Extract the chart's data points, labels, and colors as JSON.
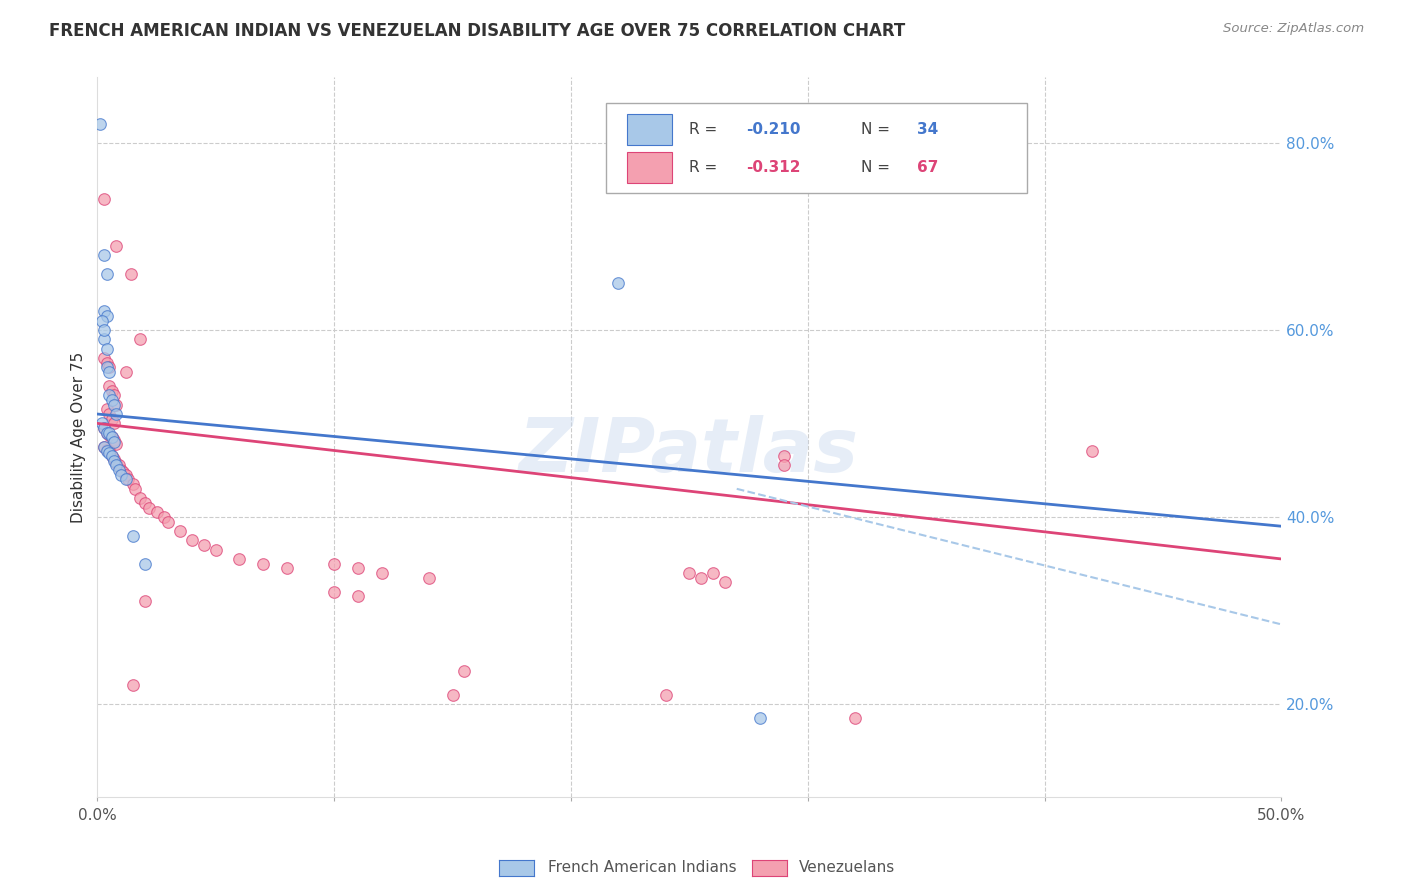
{
  "title": "FRENCH AMERICAN INDIAN VS VENEZUELAN DISABILITY AGE OVER 75 CORRELATION CHART",
  "source": "Source: ZipAtlas.com",
  "ylabel": "Disability Age Over 75",
  "xmin": 0.0,
  "xmax": 0.5,
  "ymin": 0.1,
  "ymax": 0.87,
  "xticks": [
    0.0,
    0.1,
    0.2,
    0.3,
    0.4,
    0.5
  ],
  "xticklabels": [
    "0.0%",
    "",
    "",
    "",
    "",
    "50.0%"
  ],
  "yticks_right": [
    0.2,
    0.4,
    0.6,
    0.8
  ],
  "yticklabels_right": [
    "20.0%",
    "40.0%",
    "60.0%",
    "80.0%"
  ],
  "blue_scatter": [
    [
      0.001,
      0.82
    ],
    [
      0.003,
      0.68
    ],
    [
      0.004,
      0.66
    ],
    [
      0.003,
      0.62
    ],
    [
      0.004,
      0.615
    ],
    [
      0.003,
      0.59
    ],
    [
      0.004,
      0.58
    ],
    [
      0.002,
      0.61
    ],
    [
      0.003,
      0.6
    ],
    [
      0.004,
      0.56
    ],
    [
      0.005,
      0.555
    ],
    [
      0.005,
      0.53
    ],
    [
      0.006,
      0.525
    ],
    [
      0.007,
      0.52
    ],
    [
      0.008,
      0.51
    ],
    [
      0.002,
      0.5
    ],
    [
      0.003,
      0.495
    ],
    [
      0.004,
      0.49
    ],
    [
      0.005,
      0.49
    ],
    [
      0.006,
      0.485
    ],
    [
      0.007,
      0.48
    ],
    [
      0.003,
      0.475
    ],
    [
      0.004,
      0.47
    ],
    [
      0.005,
      0.468
    ],
    [
      0.006,
      0.465
    ],
    [
      0.007,
      0.46
    ],
    [
      0.008,
      0.455
    ],
    [
      0.009,
      0.45
    ],
    [
      0.01,
      0.445
    ],
    [
      0.012,
      0.44
    ],
    [
      0.015,
      0.38
    ],
    [
      0.02,
      0.35
    ],
    [
      0.22,
      0.65
    ],
    [
      0.28,
      0.185
    ]
  ],
  "pink_scatter": [
    [
      0.003,
      0.74
    ],
    [
      0.008,
      0.69
    ],
    [
      0.014,
      0.66
    ],
    [
      0.018,
      0.59
    ],
    [
      0.003,
      0.57
    ],
    [
      0.004,
      0.565
    ],
    [
      0.005,
      0.56
    ],
    [
      0.012,
      0.555
    ],
    [
      0.005,
      0.54
    ],
    [
      0.006,
      0.535
    ],
    [
      0.007,
      0.53
    ],
    [
      0.008,
      0.52
    ],
    [
      0.004,
      0.515
    ],
    [
      0.005,
      0.51
    ],
    [
      0.006,
      0.505
    ],
    [
      0.007,
      0.5
    ],
    [
      0.003,
      0.495
    ],
    [
      0.004,
      0.49
    ],
    [
      0.005,
      0.488
    ],
    [
      0.006,
      0.485
    ],
    [
      0.007,
      0.482
    ],
    [
      0.008,
      0.478
    ],
    [
      0.003,
      0.475
    ],
    [
      0.004,
      0.472
    ],
    [
      0.005,
      0.47
    ],
    [
      0.006,
      0.465
    ],
    [
      0.007,
      0.462
    ],
    [
      0.008,
      0.458
    ],
    [
      0.009,
      0.455
    ],
    [
      0.01,
      0.45
    ],
    [
      0.011,
      0.448
    ],
    [
      0.012,
      0.445
    ],
    [
      0.013,
      0.44
    ],
    [
      0.015,
      0.435
    ],
    [
      0.016,
      0.43
    ],
    [
      0.018,
      0.42
    ],
    [
      0.02,
      0.415
    ],
    [
      0.022,
      0.41
    ],
    [
      0.025,
      0.405
    ],
    [
      0.028,
      0.4
    ],
    [
      0.03,
      0.395
    ],
    [
      0.035,
      0.385
    ],
    [
      0.04,
      0.375
    ],
    [
      0.045,
      0.37
    ],
    [
      0.05,
      0.365
    ],
    [
      0.06,
      0.355
    ],
    [
      0.07,
      0.35
    ],
    [
      0.08,
      0.345
    ],
    [
      0.1,
      0.35
    ],
    [
      0.11,
      0.345
    ],
    [
      0.12,
      0.34
    ],
    [
      0.14,
      0.335
    ],
    [
      0.15,
      0.21
    ],
    [
      0.155,
      0.235
    ],
    [
      0.24,
      0.21
    ],
    [
      0.29,
      0.465
    ],
    [
      0.29,
      0.455
    ],
    [
      0.32,
      0.185
    ],
    [
      0.1,
      0.32
    ],
    [
      0.11,
      0.315
    ],
    [
      0.015,
      0.22
    ],
    [
      0.02,
      0.31
    ],
    [
      0.42,
      0.47
    ],
    [
      0.25,
      0.34
    ],
    [
      0.255,
      0.335
    ],
    [
      0.26,
      0.34
    ],
    [
      0.265,
      0.33
    ]
  ],
  "blue_line": [
    [
      0.0,
      0.51
    ],
    [
      0.5,
      0.39
    ]
  ],
  "pink_line": [
    [
      0.0,
      0.5
    ],
    [
      0.5,
      0.355
    ]
  ],
  "blue_dash_line": [
    [
      0.27,
      0.43
    ],
    [
      0.5,
      0.285
    ]
  ],
  "background_color": "#ffffff",
  "blue_color": "#A8C8E8",
  "pink_color": "#F4A0B0",
  "blue_line_color": "#4477CC",
  "pink_line_color": "#DD4477",
  "blue_edge_color": "#4477CC",
  "pink_edge_color": "#DD4477",
  "watermark": "ZIPatlas",
  "marker_size": 70,
  "legend_blue_R": "-0.210",
  "legend_blue_N": "34",
  "legend_pink_R": "-0.312",
  "legend_pink_N": "67"
}
